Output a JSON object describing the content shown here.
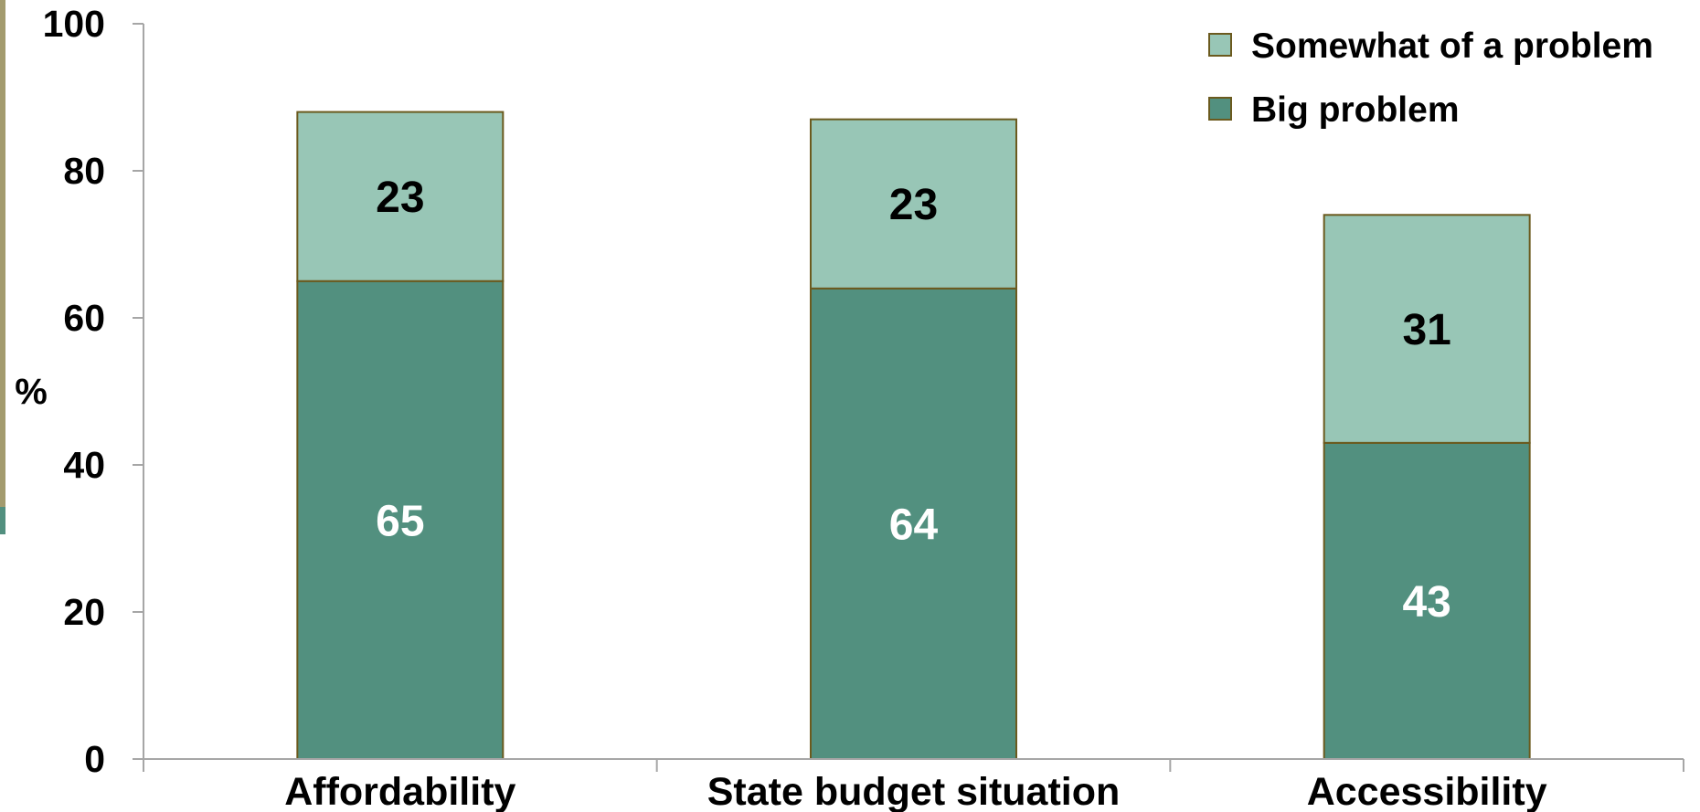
{
  "chart_data": {
    "type": "bar",
    "stacked": true,
    "categories": [
      "Affordability",
      "State budget situation",
      "Accessibility"
    ],
    "series": [
      {
        "name": "Big problem",
        "values": [
          65,
          64,
          43
        ],
        "color": "#52907f",
        "label_color": "#ffffff"
      },
      {
        "name": "Somewhat of a problem",
        "values": [
          23,
          23,
          31
        ],
        "color": "#98c6b6",
        "label_color": "#000000"
      }
    ],
    "ylabel": "%",
    "ylim": [
      0,
      100
    ],
    "yticks": [
      0,
      20,
      40,
      60,
      80,
      100
    ],
    "grid": false,
    "legend_position": "top-right",
    "bar_outline_color": "#6b5a1e",
    "axis_color": "#a6a6a6",
    "left_edge_accent_color": "#a39b6e",
    "left_edge_accent2_color": "#52907f"
  }
}
